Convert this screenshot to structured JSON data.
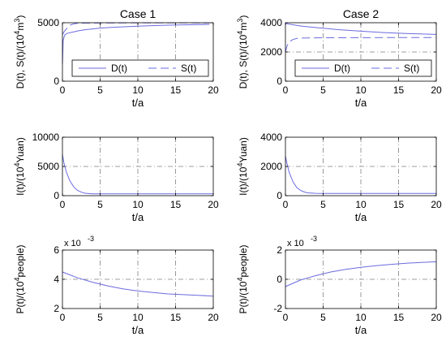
{
  "chart_data": [
    {
      "id": "case1-top",
      "type": "line",
      "title": "Case 1",
      "xlabel": "t/a",
      "ylabel_main": "D(t), S(t)/(10",
      "ylabel_sup": "4",
      "ylabel_tail": "m",
      "ylabel_sup2": "3",
      "ylabel_end": ")",
      "xlim": [
        0,
        20
      ],
      "ylim": [
        0,
        5000
      ],
      "xticks": [
        "0",
        "5",
        "10",
        "15",
        "20"
      ],
      "yticks": [
        "0",
        "5000"
      ],
      "grid": true,
      "legend_position": "bottom-right",
      "series": [
        {
          "name": "D(t)",
          "style": "solid",
          "x": [
            0,
            0.1,
            0.3,
            0.6,
            1,
            1.5,
            2,
            3,
            4,
            5,
            7,
            10,
            13,
            16,
            19.5
          ],
          "y": [
            1500,
            3500,
            3950,
            4080,
            4150,
            4220,
            4300,
            4400,
            4470,
            4540,
            4620,
            4700,
            4770,
            4820,
            4860
          ]
        },
        {
          "name": "S(t)",
          "style": "dashed",
          "x": [
            0,
            0.3,
            0.7,
            1,
            1.5,
            2,
            3,
            5,
            10,
            15,
            19.5
          ],
          "y": [
            4000,
            4300,
            4600,
            4800,
            4900,
            4950,
            4970,
            4980,
            4990,
            4990,
            4990
          ]
        }
      ]
    },
    {
      "id": "case2-top",
      "type": "line",
      "title": "Case 2",
      "xlabel": "t/a",
      "ylabel_main": "D(t), S(t)/(10",
      "ylabel_sup": "4",
      "ylabel_tail": "m",
      "ylabel_sup2": "3",
      "ylabel_end": ")",
      "xlim": [
        0,
        20
      ],
      "ylim": [
        0,
        4000
      ],
      "xticks": [
        "0",
        "5",
        "10",
        "15",
        "20"
      ],
      "yticks": [
        "0",
        "2000",
        "4000"
      ],
      "grid": true,
      "legend_position": "bottom-right",
      "series": [
        {
          "name": "D(t)",
          "style": "solid",
          "x": [
            0,
            0.5,
            1,
            2,
            3,
            5,
            7,
            10,
            13,
            16,
            20
          ],
          "y": [
            3950,
            3900,
            3860,
            3780,
            3720,
            3620,
            3530,
            3420,
            3330,
            3260,
            3200
          ]
        },
        {
          "name": "S(t)",
          "style": "dashed",
          "x": [
            0,
            0.2,
            0.5,
            1,
            1.5,
            2,
            3,
            5,
            10,
            15,
            20
          ],
          "y": [
            2000,
            2400,
            2700,
            2850,
            2920,
            2950,
            2960,
            2970,
            2980,
            2990,
            2990
          ]
        }
      ]
    },
    {
      "id": "case1-mid",
      "type": "line",
      "title": "",
      "xlabel": "t/a",
      "ylabel_main": "I(t)/(10",
      "ylabel_sup": "4",
      "ylabel_tail": "Yuan",
      "ylabel_sup2": "",
      "ylabel_end": ")",
      "xlim": [
        0,
        20
      ],
      "ylim": [
        0,
        10000
      ],
      "xticks": [
        "0",
        "5",
        "10",
        "15",
        "20"
      ],
      "yticks": [
        "0",
        "5000",
        "10000"
      ],
      "grid": true,
      "series": [
        {
          "style": "solid",
          "x": [
            0,
            0.2,
            0.5,
            1,
            1.5,
            2,
            2.5,
            3,
            4,
            5,
            7,
            10,
            15,
            20
          ],
          "y": [
            7000,
            5600,
            4100,
            2500,
            1500,
            900,
            600,
            420,
            320,
            300,
            300,
            300,
            300,
            300
          ]
        }
      ]
    },
    {
      "id": "case2-mid",
      "type": "line",
      "title": "",
      "xlabel": "t/a",
      "ylabel_main": "I(t)/(10",
      "ylabel_sup": "4",
      "ylabel_tail": "Yuan",
      "ylabel_sup2": "",
      "ylabel_end": ")",
      "xlim": [
        0,
        20
      ],
      "ylim": [
        0,
        4000
      ],
      "xticks": [
        "0",
        "5",
        "10",
        "15",
        "20"
      ],
      "yticks": [
        "0",
        "2000",
        "4000"
      ],
      "grid": true,
      "series": [
        {
          "style": "solid",
          "x": [
            0,
            0.2,
            0.5,
            1,
            1.5,
            2,
            2.5,
            3,
            4,
            5,
            7,
            10,
            15,
            20
          ],
          "y": [
            2700,
            2200,
            1600,
            950,
            560,
            360,
            250,
            190,
            160,
            150,
            150,
            150,
            150,
            150
          ]
        }
      ]
    },
    {
      "id": "case1-bot",
      "type": "line",
      "title": "",
      "xlabel": "t/a",
      "ylabel_main": "P(t)/(10",
      "ylabel_sup": "4",
      "ylabel_tail": "people",
      "ylabel_sup2": "",
      "ylabel_end": ")",
      "multiplier": "x 10",
      "multiplier_exp": "-3",
      "xlim": [
        0,
        20
      ],
      "ylim": [
        2,
        6
      ],
      "xticks": [
        "0",
        "5",
        "10",
        "15",
        "20"
      ],
      "yticks": [
        "2",
        "4",
        "6"
      ],
      "grid": true,
      "series": [
        {
          "style": "solid",
          "x": [
            0,
            2,
            4,
            6,
            8,
            10,
            12,
            14,
            16,
            18,
            20
          ],
          "y": [
            4.5,
            4.1,
            3.8,
            3.55,
            3.35,
            3.2,
            3.1,
            3.0,
            2.95,
            2.9,
            2.85
          ]
        }
      ]
    },
    {
      "id": "case2-bot",
      "type": "line",
      "title": "",
      "xlabel": "t/a",
      "ylabel_main": "P(t)/(10",
      "ylabel_sup": "4",
      "ylabel_tail": "people",
      "ylabel_sup2": "",
      "ylabel_end": ")",
      "multiplier": "x 10",
      "multiplier_exp": "-3",
      "xlim": [
        0,
        20
      ],
      "ylim": [
        -2,
        2
      ],
      "xticks": [
        "0",
        "5",
        "10",
        "15",
        "20"
      ],
      "yticks": [
        "-2",
        "0",
        "2"
      ],
      "grid": true,
      "series": [
        {
          "style": "solid",
          "x": [
            0,
            2,
            4,
            6,
            8,
            10,
            12,
            14,
            16,
            18,
            20
          ],
          "y": [
            -0.5,
            -0.05,
            0.25,
            0.5,
            0.68,
            0.82,
            0.93,
            1.02,
            1.1,
            1.15,
            1.2
          ]
        }
      ]
    }
  ],
  "style": {
    "line_color": "#6b6be0",
    "axis_color": "#000000",
    "grid_color": "#808080",
    "background": "#ffffff"
  }
}
